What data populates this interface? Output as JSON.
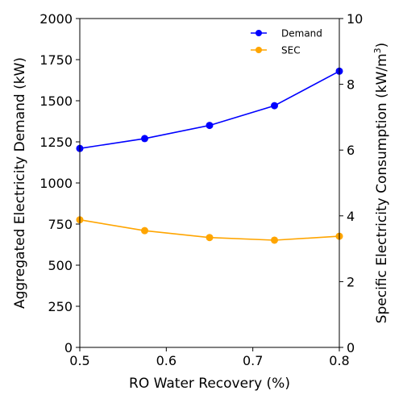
{
  "chart_data": {
    "type": "line",
    "title": "",
    "xlabel": "RO Water Recovery (%)",
    "ylabel_left": "Aggregated Electricity Demand (kW)",
    "ylabel_right_prefix": "Specific Electricity Consumption (kW/m",
    "ylabel_right_sup": "3",
    "ylabel_right_suffix": ")",
    "xlim": [
      0.5,
      0.8
    ],
    "ylim_left": [
      0,
      2000
    ],
    "ylim_right": [
      0,
      10
    ],
    "x_ticks": [
      0.5,
      0.6,
      0.7,
      0.8
    ],
    "x_tick_labels": [
      "0.5",
      "0.6",
      "0.7",
      "0.8"
    ],
    "y_left_ticks": [
      0,
      250,
      500,
      750,
      1000,
      1250,
      1500,
      1750,
      2000
    ],
    "y_left_tick_labels": [
      "0",
      "250",
      "500",
      "750",
      "1000",
      "1250",
      "1500",
      "1750",
      "2000"
    ],
    "y_right_ticks": [
      0,
      2,
      4,
      6,
      8,
      10
    ],
    "y_right_tick_labels": [
      "0",
      "2",
      "4",
      "6",
      "8",
      "10"
    ],
    "grid": false,
    "legend_position": "top-right",
    "x": [
      0.5,
      0.575,
      0.65,
      0.725,
      0.8
    ],
    "series": [
      {
        "name": "Demand",
        "axis": "left",
        "color": "#0000ff",
        "values": [
          1210,
          1270,
          1350,
          1470,
          1680
        ]
      },
      {
        "name": "SEC",
        "axis": "right",
        "color": "#ffa500",
        "values": [
          3.88,
          3.55,
          3.34,
          3.26,
          3.38
        ]
      }
    ]
  }
}
